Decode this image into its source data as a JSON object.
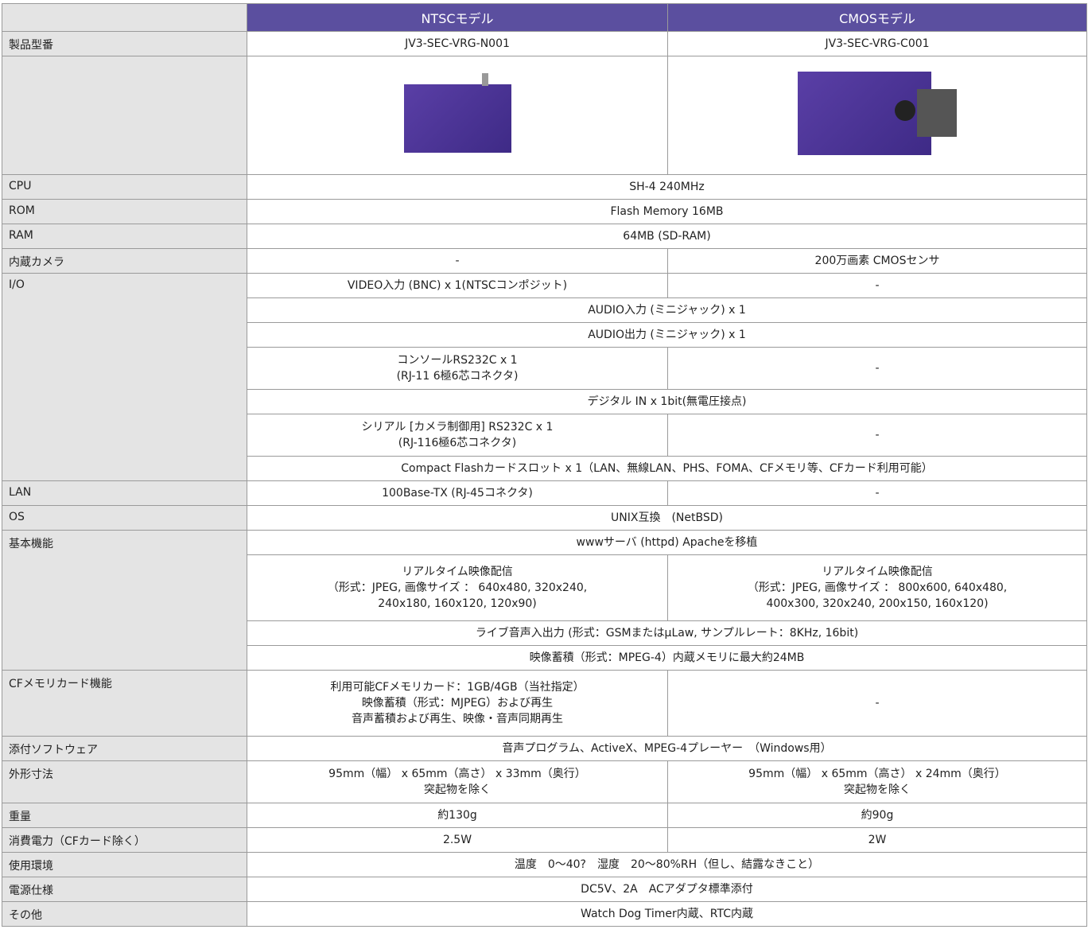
{
  "header": {
    "col1": "NTSCモデル",
    "col2": "CMOSモデル"
  },
  "rows": [
    {
      "label": "製品型番",
      "sub": [
        [
          "JV3-SEC-VRG-N001",
          "JV3-SEC-VRG-C001"
        ]
      ]
    },
    {
      "label": "CPU",
      "sub": [
        [
          "SH-4 240MHz"
        ]
      ]
    },
    {
      "label": "ROM",
      "sub": [
        [
          "Flash Memory 16MB"
        ]
      ]
    },
    {
      "label": "RAM",
      "sub": [
        [
          "64MB (SD-RAM)"
        ]
      ]
    },
    {
      "label": "内蔵カメラ",
      "sub": [
        [
          "-",
          "200万画素 CMOSセンサ"
        ]
      ]
    },
    {
      "label": "I/O",
      "sub": [
        [
          "VIDEO入力 (BNC) x 1(NTSCコンポジット)",
          "-"
        ],
        [
          "AUDIO入力 (ミニジャック) x 1"
        ],
        [
          "AUDIO出力 (ミニジャック) x 1"
        ],
        [
          [
            "コンソールRS232C x 1",
            "(RJ-11 6極6芯コネクタ)"
          ],
          "-"
        ],
        [
          "デジタル IN x 1bit(無電圧接点)"
        ],
        [
          [
            "シリアル [カメラ制御用] RS232C x 1",
            "(RJ-116極6芯コネクタ)"
          ],
          "-"
        ],
        [
          "Compact Flashカードスロット x 1（LAN、無線LAN、PHS、FOMA、CFメモリ等、CFカード利用可能）"
        ]
      ]
    },
    {
      "label": "LAN",
      "sub": [
        [
          "100Base-TX (RJ-45コネクタ)",
          "-"
        ]
      ]
    },
    {
      "label": "OS",
      "sub": [
        [
          "UNIX互換　(NetBSD)"
        ]
      ]
    },
    {
      "label": "基本機能",
      "sub": [
        [
          "wwwサーバ (httpd) Apacheを移植"
        ],
        [
          [
            "リアルタイム映像配信",
            "（形式：JPEG, 画像サイズ ： 640x480, 320x240,",
            "240x180, 160x120, 120x90)"
          ],
          [
            "リアルタイム映像配信",
            "（形式：JPEG, 画像サイズ ： 800x600, 640x480,",
            "400x300, 320x240, 200x150, 160x120)"
          ]
        ],
        [
          "ライブ音声入出力 (形式：GSMまたはμLaw, サンプルレート：8KHz, 16bit)"
        ],
        [
          "映像蓄積（形式：MPEG-4）内蔵メモリに最大約24MB"
        ]
      ]
    },
    {
      "label": "CFメモリカード機能",
      "sub": [
        [
          [
            "利用可能CFメモリカード：1GB/4GB（当社指定）",
            "映像蓄積（形式：MJPEG）および再生",
            "音声蓄積および再生、映像・音声同期再生"
          ],
          "-"
        ]
      ]
    },
    {
      "label": "添付ソフトウェア",
      "sub": [
        [
          "音声プログラム、ActiveX、MPEG-4プレーヤー　（Windows用）"
        ]
      ]
    },
    {
      "label": "外形寸法",
      "sub": [
        [
          [
            "95mm（幅） x 65mm（高さ） x 33mm（奥行）",
            "突起物を除く"
          ],
          [
            "95mm（幅） x 65mm（高さ） x 24mm（奥行）",
            "突起物を除く"
          ]
        ]
      ]
    },
    {
      "label": "重量",
      "sub": [
        [
          "約130g",
          "約90g"
        ]
      ]
    },
    {
      "label": "消費電力（CFカード除く）",
      "sub": [
        [
          "2.5W",
          "2W"
        ]
      ]
    },
    {
      "label": "使用環境",
      "sub": [
        [
          "温度　0～40?　湿度　20～80%RH（但し、結露なきこと）"
        ]
      ]
    },
    {
      "label": "電源仕様",
      "sub": [
        [
          "DC5V、2A　ACアダプタ標準添付"
        ]
      ]
    },
    {
      "label": "その他",
      "sub": [
        [
          "Watch Dog Timer内蔵、RTC内蔵"
        ]
      ]
    }
  ]
}
